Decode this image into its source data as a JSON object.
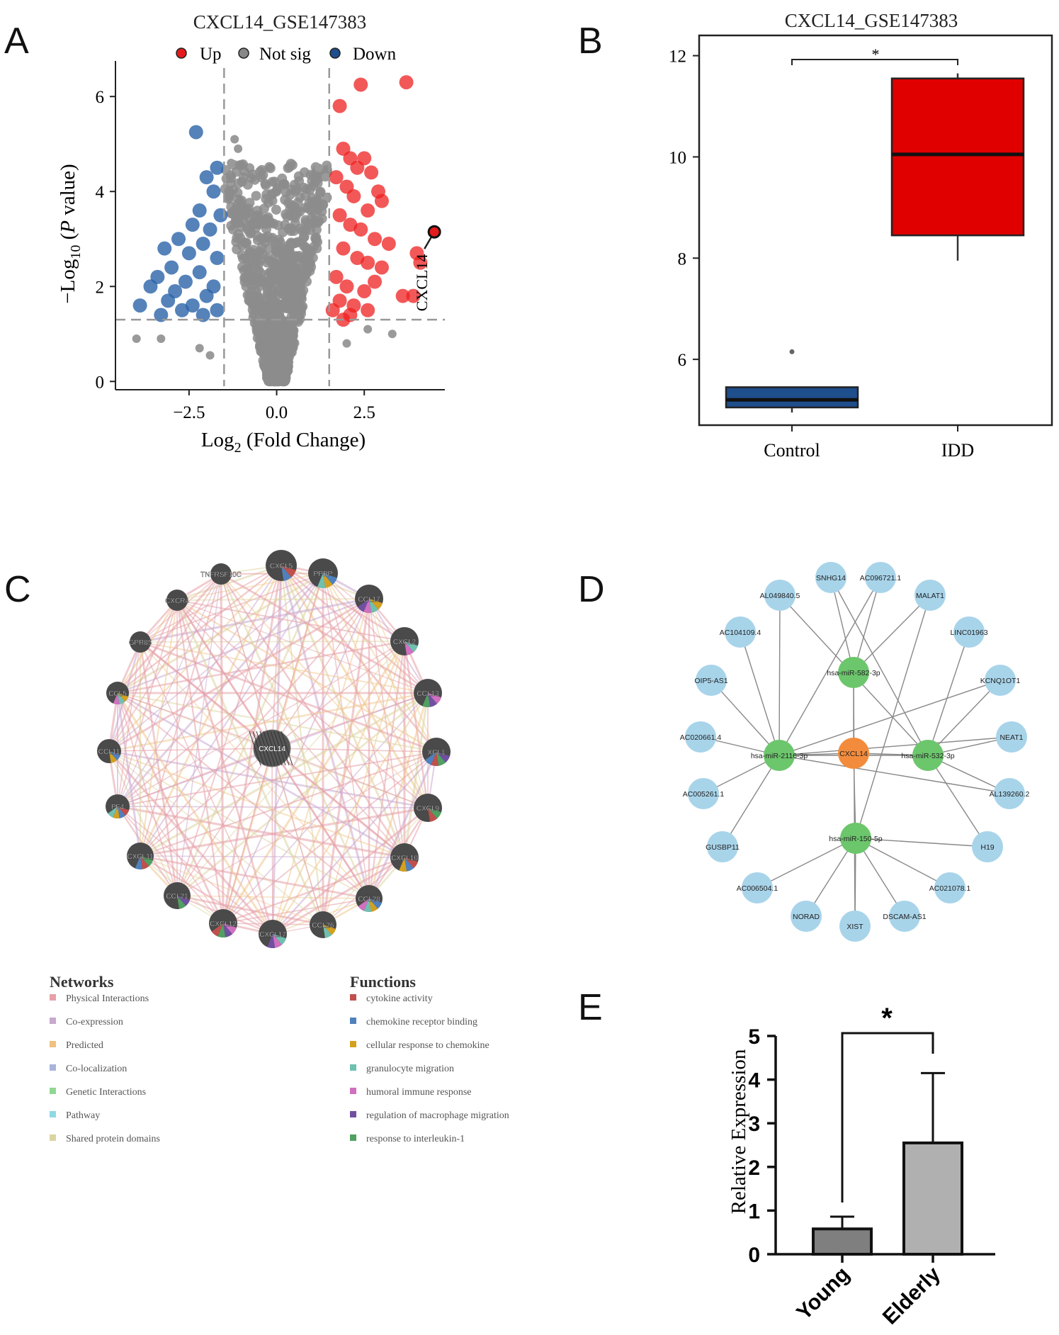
{
  "panels": {
    "A": "A",
    "B": "B",
    "C": "C",
    "D": "D",
    "E": "E"
  },
  "chart_data": [
    {
      "panel": "A",
      "type": "scatter",
      "title": "CXCL14_GSE147383",
      "xlabel_main": "Log",
      "xlabel_sub": "2",
      "xlabel_rest": " (Fold Change)",
      "ylabel_pre": "−Log",
      "ylabel_sub": "10",
      "ylabel_open": " (",
      "ylabel_p": "P",
      "ylabel_rest": " value)",
      "xlim": [
        -4.6,
        4.8
      ],
      "ylim": [
        -0.1,
        6.6
      ],
      "xticks": [
        -2.5,
        0.0,
        2.5
      ],
      "xtick_labels": [
        "−2.5",
        "0.0",
        "2.5"
      ],
      "yticks": [
        0,
        2,
        4,
        6
      ],
      "ytick_labels": [
        "0",
        "2",
        "4",
        "6"
      ],
      "thresholds": {
        "log2fc": 1.5,
        "neglog10p": 1.3
      },
      "legend": [
        {
          "label": "Up",
          "color": "#e41a1c"
        },
        {
          "label": "Not sig",
          "color": "#888888"
        },
        {
          "label": "Down",
          "color": "#1f4e8c"
        }
      ],
      "highlight": {
        "label": "CXCL14",
        "x": 4.5,
        "y": 3.15
      },
      "up_points": [
        [
          2.4,
          6.25
        ],
        [
          3.7,
          6.3
        ],
        [
          1.8,
          5.8
        ],
        [
          1.9,
          4.9
        ],
        [
          2.1,
          4.7
        ],
        [
          2.3,
          4.5
        ],
        [
          2.5,
          4.7
        ],
        [
          2.7,
          4.4
        ],
        [
          1.7,
          4.3
        ],
        [
          2.0,
          4.1
        ],
        [
          2.2,
          3.9
        ],
        [
          2.9,
          4.0
        ],
        [
          3.0,
          3.8
        ],
        [
          2.6,
          3.6
        ],
        [
          1.8,
          3.5
        ],
        [
          2.1,
          3.3
        ],
        [
          2.4,
          3.2
        ],
        [
          2.8,
          3.0
        ],
        [
          3.2,
          2.9
        ],
        [
          1.9,
          2.8
        ],
        [
          2.3,
          2.6
        ],
        [
          2.6,
          2.5
        ],
        [
          3.0,
          2.4
        ],
        [
          4.0,
          2.7
        ],
        [
          4.1,
          2.5
        ],
        [
          1.7,
          2.2
        ],
        [
          2.0,
          2.0
        ],
        [
          2.5,
          1.9
        ],
        [
          2.8,
          2.1
        ],
        [
          3.6,
          1.8
        ],
        [
          3.9,
          1.8
        ],
        [
          1.8,
          1.7
        ],
        [
          2.2,
          1.6
        ],
        [
          1.6,
          1.5
        ],
        [
          2.1,
          1.4
        ],
        [
          2.6,
          1.5
        ],
        [
          1.9,
          1.3
        ]
      ],
      "down_points": [
        [
          -2.3,
          5.25
        ],
        [
          -1.7,
          4.5
        ],
        [
          -2.0,
          4.3
        ],
        [
          -1.8,
          4.0
        ],
        [
          -2.2,
          3.6
        ],
        [
          -1.6,
          3.5
        ],
        [
          -2.4,
          3.3
        ],
        [
          -1.9,
          3.2
        ],
        [
          -2.8,
          3.0
        ],
        [
          -2.1,
          2.9
        ],
        [
          -3.2,
          2.8
        ],
        [
          -2.5,
          2.7
        ],
        [
          -1.7,
          2.6
        ],
        [
          -3.0,
          2.4
        ],
        [
          -2.2,
          2.3
        ],
        [
          -3.4,
          2.2
        ],
        [
          -2.6,
          2.1
        ],
        [
          -1.8,
          2.0
        ],
        [
          -3.6,
          2.0
        ],
        [
          -2.9,
          1.9
        ],
        [
          -2.0,
          1.8
        ],
        [
          -3.1,
          1.7
        ],
        [
          -3.9,
          1.6
        ],
        [
          -2.4,
          1.6
        ],
        [
          -1.7,
          1.5
        ],
        [
          -2.7,
          1.5
        ],
        [
          -3.3,
          1.4
        ],
        [
          -2.1,
          1.4
        ]
      ],
      "notsig_points_extra": [
        [
          -4.0,
          0.9
        ],
        [
          -3.3,
          0.9
        ],
        [
          -2.2,
          0.7
        ],
        [
          -1.9,
          0.55
        ],
        [
          2.0,
          0.8
        ],
        [
          2.6,
          1.1
        ],
        [
          3.3,
          1.0
        ],
        [
          -1.2,
          5.1
        ],
        [
          -1.1,
          4.9
        ],
        [
          1.2,
          4.5
        ],
        [
          1.4,
          4.3
        ],
        [
          -1.3,
          4.6
        ]
      ]
    },
    {
      "panel": "B",
      "type": "box",
      "title": "CXCL14_GSE147383",
      "categories": [
        "Control",
        "IDD"
      ],
      "ylim": [
        4.7,
        12.4
      ],
      "yticks": [
        6,
        8,
        10,
        12
      ],
      "ytick_labels": [
        "6",
        "8",
        "10",
        "12"
      ],
      "boxes": [
        {
          "name": "Control",
          "min": 4.95,
          "q1": 5.05,
          "median": 5.2,
          "q3": 5.45,
          "max": 5.45,
          "outliers": [
            6.15
          ],
          "color": "#1f4e8c"
        },
        {
          "name": "IDD",
          "min": 7.95,
          "q1": 8.45,
          "median": 10.05,
          "q3": 11.55,
          "max": 11.65,
          "outliers": [],
          "color": "#e00000"
        }
      ],
      "significance": "*"
    },
    {
      "panel": "E",
      "type": "bar",
      "categories": [
        "Young",
        "Elderly"
      ],
      "values": [
        0.58,
        2.55
      ],
      "errors": [
        0.28,
        1.6
      ],
      "ylabel": "Relative Expression",
      "ylim": [
        0,
        5
      ],
      "yticks": [
        0,
        1,
        2,
        3,
        4,
        5
      ],
      "ytick_labels": [
        "0",
        "1",
        "2",
        "3",
        "4",
        "5"
      ],
      "colors": [
        "#7f7f7f",
        "#b0b0b0"
      ],
      "significance": "*"
    }
  ],
  "network_c": {
    "center": "CXCL14",
    "nodes": [
      "CXCL5",
      "PPBP",
      "CCL17",
      "CXCL2",
      "CCL13",
      "XCL1",
      "CXCL9",
      "CXCL10",
      "CCL28",
      "CCL26",
      "CXCL17",
      "CXCL12",
      "CCL21",
      "CXCL11",
      "PF4",
      "CCL11",
      "CCL5",
      "GPR85",
      "CXCR4",
      "TNFRSF10C"
    ],
    "networks_title": "Networks",
    "networks": [
      {
        "label": "Physical Interactions",
        "color": "#e8a0a8"
      },
      {
        "label": "Co-expression",
        "color": "#c8a8d0"
      },
      {
        "label": "Predicted",
        "color": "#f0c080"
      },
      {
        "label": "Co-localization",
        "color": "#a8b4dc"
      },
      {
        "label": "Genetic Interactions",
        "color": "#90d890"
      },
      {
        "label": "Pathway",
        "color": "#90d8e4"
      },
      {
        "label": "Shared protein domains",
        "color": "#dcd4a0"
      }
    ],
    "functions_title": "Functions",
    "functions": [
      {
        "label": "cytokine activity",
        "color": "#c0504d"
      },
      {
        "label": "chemokine receptor binding",
        "color": "#4f81bd"
      },
      {
        "label": "cellular response to chemokine",
        "color": "#d4a020"
      },
      {
        "label": "granulocyte migration",
        "color": "#70c0b0"
      },
      {
        "label": "humoral immune response",
        "color": "#d070c0"
      },
      {
        "label": "regulation of macrophage migration",
        "color": "#7050a0"
      },
      {
        "label": "response to interleukin-1",
        "color": "#50a060"
      }
    ]
  },
  "network_d": {
    "center": "CXCL14",
    "mirnas": [
      "hsa-miR-582-3p",
      "hsa-miR-2116-3p",
      "hsa-miR-532-3p",
      "hsa-miR-150-5p"
    ],
    "lncrnas": [
      "SNHG14",
      "AC096721.1",
      "AL049840.5",
      "MALAT1",
      "AC104109.4",
      "LINC01963",
      "OIP5-AS1",
      "KCNQ1OT1",
      "AC020661.4",
      "NEAT1",
      "AC005261.1",
      "AL139260.2",
      "GUSBP11",
      "H19",
      "AC006504.1",
      "AC021078.1",
      "NORAD",
      "XIST",
      "DSCAM-AS1"
    ],
    "colors": {
      "center": "#f28c3c",
      "mirna": "#6cc66c",
      "lncrna": "#a8d4ea",
      "edge": "#888888"
    }
  }
}
